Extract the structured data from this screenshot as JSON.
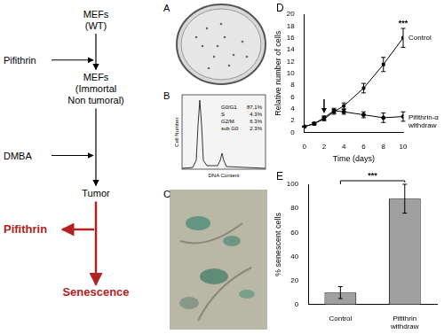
{
  "diagram": {
    "nodes": [
      {
        "lines": [
          "MEFs",
          "(WT)"
        ]
      },
      {
        "lines": [
          "MEFs",
          "(Immortal",
          "Non tumoral)"
        ]
      },
      {
        "lines": [
          "Tumor"
        ]
      },
      {
        "lines": [
          "Senescence"
        ],
        "color": "#b22222"
      }
    ],
    "treatments": [
      {
        "label": "Pifithrin"
      },
      {
        "label": "DMBA"
      },
      {
        "label": "Pifithrin",
        "color": "#b22222"
      }
    ]
  },
  "panels": {
    "A": {
      "label": "A"
    },
    "B": {
      "label": "B",
      "x_label": "DNA Content",
      "y_label": "Cell Number",
      "phases": [
        [
          "G0/G1",
          "87,1%"
        ],
        [
          "S",
          "4.3%"
        ],
        [
          "G2/M",
          "6.3%"
        ],
        [
          "sub G0",
          "2.3%"
        ]
      ]
    },
    "C": {
      "label": "C"
    }
  },
  "chart_data": [
    {
      "panel": "D",
      "type": "line",
      "x_label": "Time (days)",
      "y_label": "Relative number of cells",
      "x": [
        0,
        1,
        2,
        3,
        4,
        6,
        8,
        10
      ],
      "series": [
        {
          "name": "Control",
          "color": "#000000",
          "marker": "square",
          "values": [
            1,
            1.5,
            2.3,
            3.5,
            4.5,
            7.5,
            11.5,
            16
          ],
          "errors": [
            0.1,
            0.2,
            0.3,
            0.4,
            0.5,
            0.8,
            1.2,
            1.6
          ]
        },
        {
          "name": "Pifithrin-α withdraw",
          "color": "#000000",
          "marker": "circle",
          "values": [
            1,
            1.5,
            2.5,
            3.7,
            3.5,
            3,
            2.5,
            2.7
          ],
          "errors": [
            0.1,
            0.2,
            0.3,
            0.4,
            0.4,
            0.5,
            0.8,
            0.8
          ]
        }
      ],
      "withdrawal_day": 2,
      "significance": "***",
      "xlim": [
        0,
        10
      ],
      "xticks": [
        0,
        2,
        4,
        6,
        8,
        10
      ],
      "ylim": [
        0,
        20
      ],
      "yticks": [
        0,
        2,
        4,
        6,
        8,
        10,
        12,
        14,
        16,
        18,
        20
      ],
      "grid": false,
      "legend": false
    },
    {
      "panel": "E",
      "type": "bar",
      "y_label": "% senescent cells",
      "categories": [
        "Control",
        "Pifithrin withdraw"
      ],
      "values": [
        10,
        88
      ],
      "errors": [
        5,
        12
      ],
      "color": "#a0a0a0",
      "significance": "***",
      "ylim": [
        0,
        100
      ],
      "yticks": [
        0,
        20,
        40,
        60,
        80,
        100
      ],
      "grid": false,
      "legend": false
    }
  ]
}
